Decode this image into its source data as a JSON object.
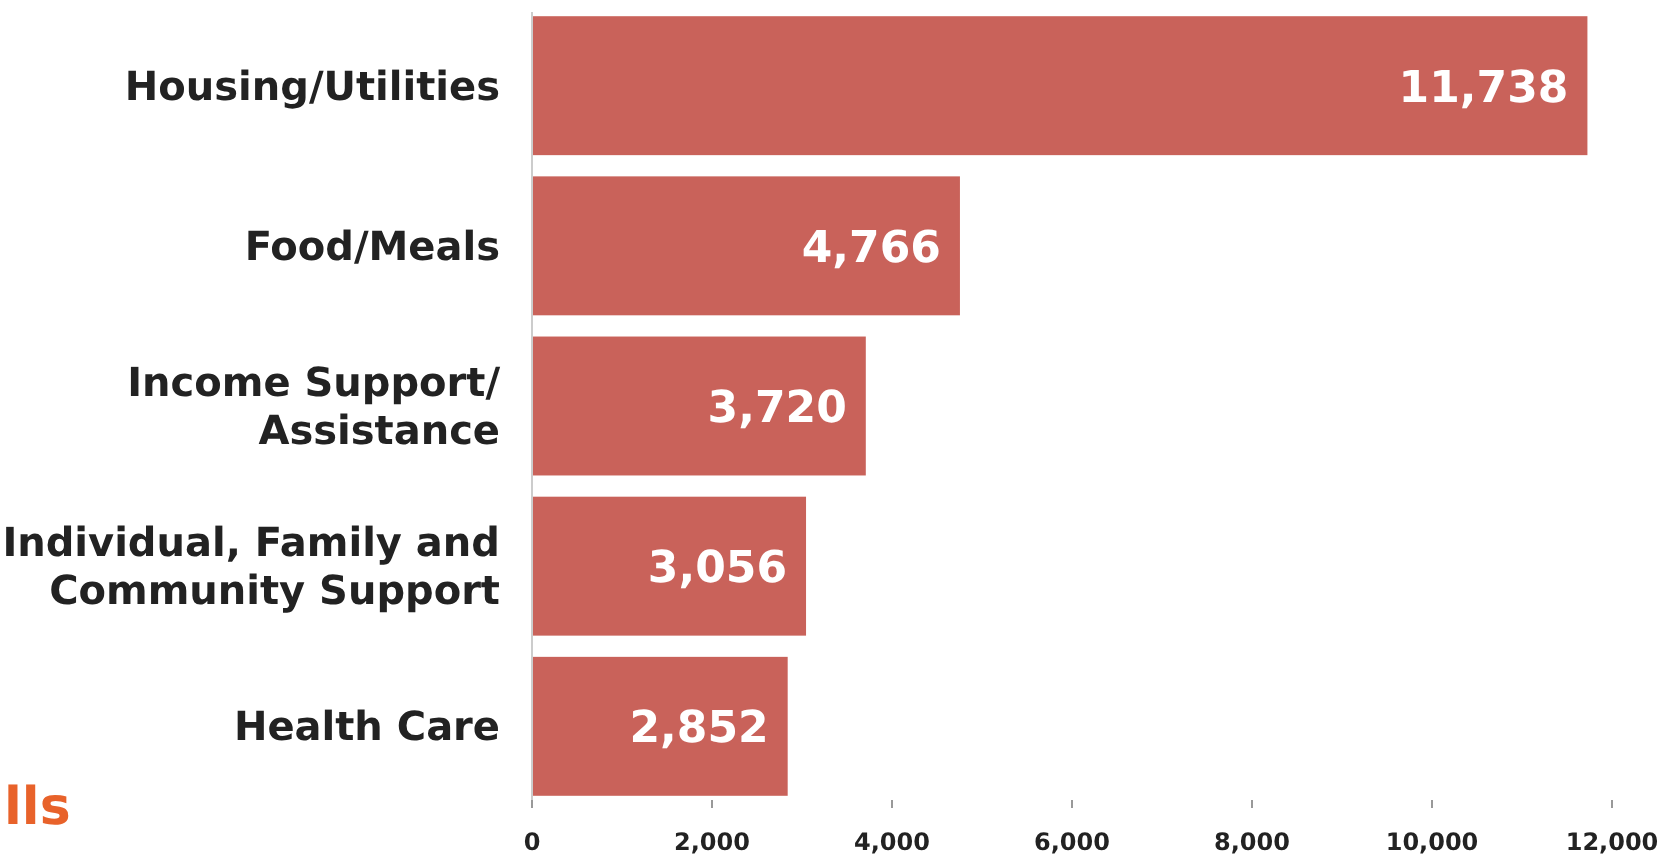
{
  "chart_data": {
    "type": "bar",
    "orientation": "horizontal",
    "categories": [
      "Housing/Utilities",
      "Food/Meals",
      "Income Support/\nAssistance",
      "Individual, Family and\nCommunity Support",
      "Health Care"
    ],
    "values": [
      11738,
      4766,
      3720,
      3056,
      2852
    ],
    "value_labels": [
      "11,738",
      "4,766",
      "3,720",
      "3,056",
      "2,852"
    ],
    "color": "#c9625a",
    "xlim": [
      0,
      12000
    ],
    "xticks": [
      {
        "value": 0,
        "label": "0"
      },
      {
        "value": 2000,
        "label": "2,000"
      },
      {
        "value": 4000,
        "label": "4,000"
      },
      {
        "value": 6000,
        "label": "6,000"
      },
      {
        "value": 8000,
        "label": "8,000"
      },
      {
        "value": 10000,
        "label": "10,000"
      },
      {
        "value": 12000,
        "label": "12,000"
      }
    ],
    "annotations": [
      "lls"
    ]
  }
}
